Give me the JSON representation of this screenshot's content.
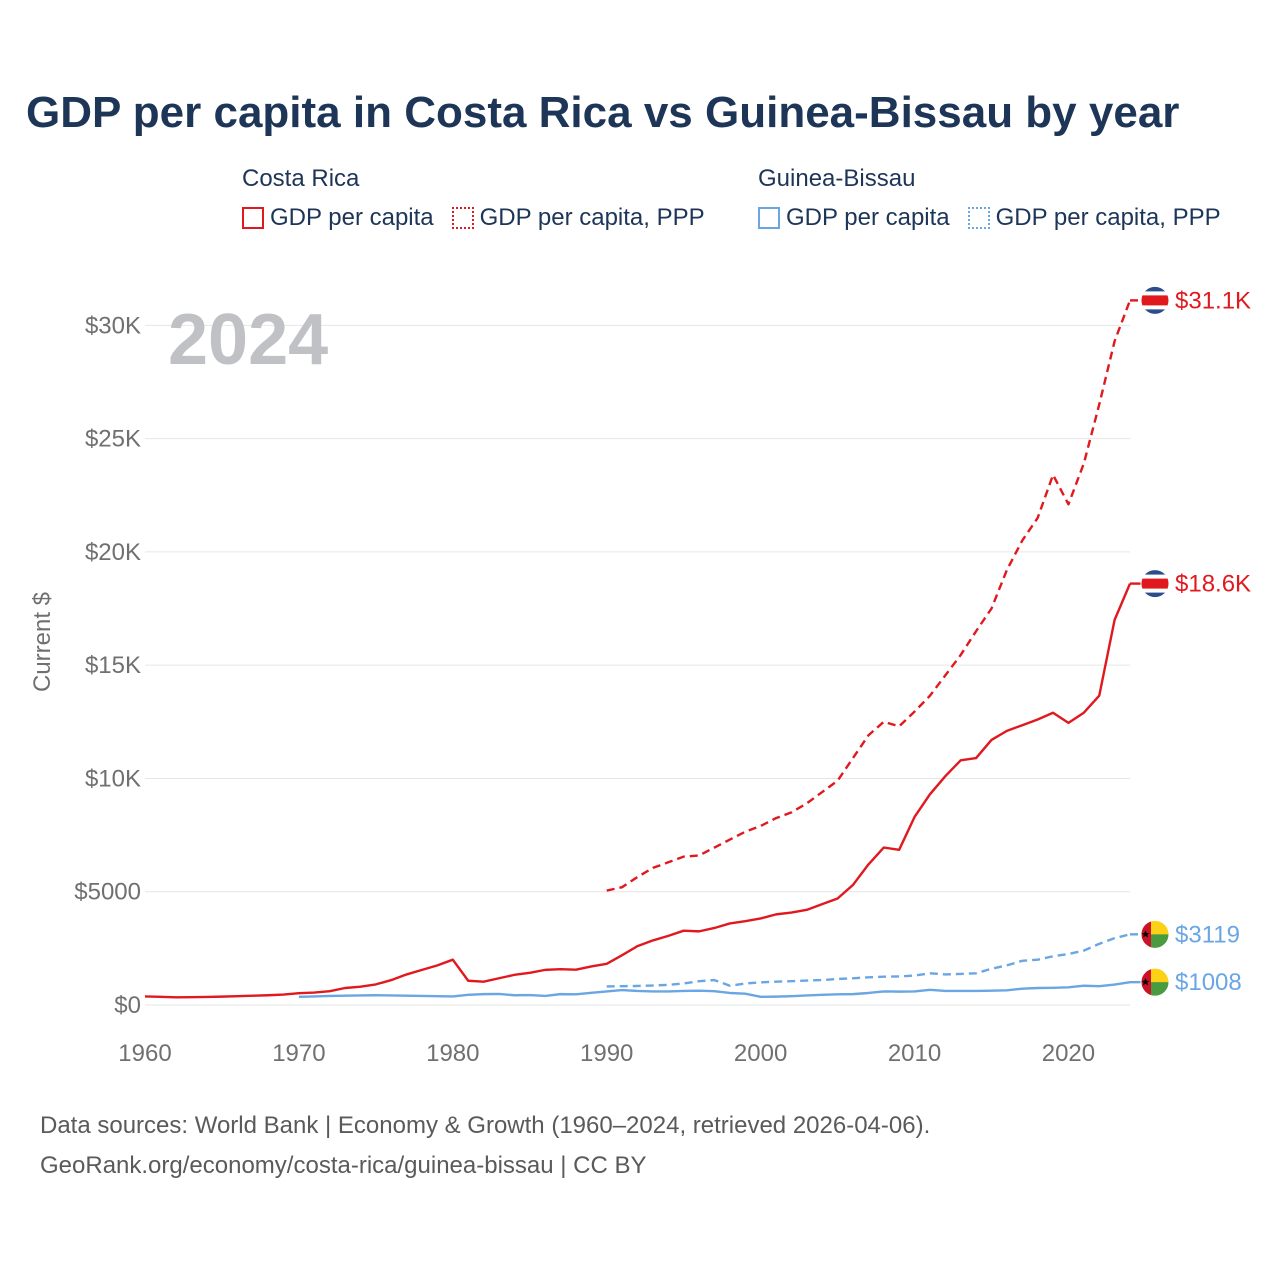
{
  "title": "GDP per capita in Costa Rica vs Guinea-Bissau by year",
  "legend": {
    "groups": [
      {
        "country": "Costa Rica",
        "color": "#e0191f",
        "items": [
          {
            "label": "GDP per capita",
            "style": "solid"
          },
          {
            "label": "GDP per capita, PPP",
            "style": "dotted"
          }
        ]
      },
      {
        "country": "Guinea-Bissau",
        "color": "#6aa6e3",
        "items": [
          {
            "label": "GDP per capita",
            "style": "solid"
          },
          {
            "label": "GDP per capita, PPP",
            "style": "dotted"
          }
        ]
      }
    ]
  },
  "source": {
    "line1": "Data sources: World Bank | Economy & Growth (1960–2024, retrieved 2026-04-06).",
    "line2": "GeoRank.org/economy/costa-rica/guinea-bissau | CC BY"
  },
  "chart_data": {
    "type": "line",
    "title": "GDP per capita in Costa Rica vs Guinea-Bissau by year",
    "year_label": "2024",
    "xlabel": "",
    "ylabel": "Current $",
    "xlim": [
      1960,
      2024
    ],
    "ylim": [
      0,
      32000
    ],
    "xticks": [
      1960,
      1970,
      1980,
      1990,
      2000,
      2010,
      2020
    ],
    "yticks": [
      {
        "value": 0,
        "label": "$0"
      },
      {
        "value": 5000,
        "label": "$5000"
      },
      {
        "value": 10000,
        "label": "$10K"
      },
      {
        "value": 15000,
        "label": "$15K"
      },
      {
        "value": 20000,
        "label": "$20K"
      },
      {
        "value": 25000,
        "label": "$25K"
      },
      {
        "value": 30000,
        "label": "$30K"
      }
    ],
    "grid": true,
    "series": [
      {
        "name": "Costa Rica GDP per capita",
        "country": "Costa Rica",
        "color": "#e0191f",
        "dash": "solid",
        "end_label": "$18.6K",
        "x": [
          1960,
          1961,
          1962,
          1963,
          1964,
          1965,
          1966,
          1967,
          1968,
          1969,
          1970,
          1971,
          1972,
          1973,
          1974,
          1975,
          1976,
          1977,
          1978,
          1979,
          1980,
          1981,
          1982,
          1983,
          1984,
          1985,
          1986,
          1987,
          1988,
          1989,
          1990,
          1991,
          1992,
          1993,
          1994,
          1995,
          1996,
          1997,
          1998,
          1999,
          2000,
          2001,
          2002,
          2003,
          2004,
          2005,
          2006,
          2007,
          2008,
          2009,
          2010,
          2011,
          2012,
          2013,
          2014,
          2015,
          2016,
          2017,
          2018,
          2019,
          2020,
          2021,
          2022,
          2023,
          2024
        ],
        "values": [
          380,
          360,
          340,
          345,
          355,
          370,
          390,
          410,
          430,
          460,
          520,
          550,
          610,
          750,
          810,
          910,
          1100,
          1350,
          1550,
          1750,
          2000,
          1070,
          1030,
          1180,
          1330,
          1420,
          1550,
          1580,
          1560,
          1700,
          1820,
          2200,
          2600,
          2850,
          3050,
          3280,
          3250,
          3400,
          3600,
          3700,
          3820,
          4000,
          4080,
          4200,
          4450,
          4700,
          5300,
          6200,
          6950,
          6850,
          8300,
          9300,
          10100,
          10800,
          10900,
          11700,
          12100,
          12350,
          12600,
          12900,
          12450,
          12900,
          13650,
          17000,
          18600
        ]
      },
      {
        "name": "Costa Rica GDP per capita, PPP",
        "country": "Costa Rica",
        "color": "#e0191f",
        "dash": "dashed",
        "end_label": "$31.1K",
        "x": [
          1990,
          1991,
          1992,
          1993,
          1994,
          1995,
          1996,
          1997,
          1998,
          1999,
          2000,
          2001,
          2002,
          2003,
          2004,
          2005,
          2006,
          2007,
          2008,
          2009,
          2010,
          2011,
          2012,
          2013,
          2014,
          2015,
          2016,
          2017,
          2018,
          2019,
          2020,
          2021,
          2022,
          2023,
          2024
        ],
        "values": [
          5050,
          5200,
          5650,
          6050,
          6300,
          6550,
          6600,
          6950,
          7300,
          7650,
          7900,
          8250,
          8500,
          8900,
          9400,
          9900,
          10900,
          11900,
          12500,
          12300,
          12950,
          13650,
          14550,
          15450,
          16500,
          17500,
          19200,
          20500,
          21500,
          23400,
          22100,
          23900,
          26500,
          29300,
          31100
        ]
      },
      {
        "name": "Guinea-Bissau GDP per capita",
        "country": "Guinea-Bissau",
        "color": "#6aa6e3",
        "dash": "solid",
        "end_label": "$1008",
        "x": [
          1970,
          1971,
          1972,
          1973,
          1974,
          1975,
          1976,
          1977,
          1978,
          1979,
          1980,
          1981,
          1982,
          1983,
          1984,
          1985,
          1986,
          1987,
          1988,
          1989,
          1990,
          1991,
          1992,
          1993,
          1994,
          1995,
          1996,
          1997,
          1998,
          1999,
          2000,
          2001,
          2002,
          2003,
          2004,
          2005,
          2006,
          2007,
          2008,
          2009,
          2010,
          2011,
          2012,
          2013,
          2014,
          2015,
          2016,
          2017,
          2018,
          2019,
          2020,
          2021,
          2022,
          2023,
          2024
        ],
        "values": [
          360,
          380,
          400,
          410,
          420,
          430,
          420,
          410,
          400,
          390,
          380,
          450,
          480,
          490,
          430,
          440,
          400,
          480,
          470,
          540,
          600,
          660,
          620,
          600,
          600,
          620,
          630,
          610,
          530,
          500,
          360,
          370,
          390,
          420,
          450,
          470,
          480,
          530,
          600,
          590,
          600,
          670,
          620,
          620,
          620,
          630,
          650,
          720,
          750,
          760,
          780,
          850,
          830,
          900,
          1008
        ]
      },
      {
        "name": "Guinea-Bissau GDP per capita, PPP",
        "country": "Guinea-Bissau",
        "color": "#6aa6e3",
        "dash": "dashed",
        "end_label": "$3119",
        "x": [
          1990,
          1991,
          1992,
          1993,
          1994,
          1995,
          1996,
          1997,
          1998,
          1999,
          2000,
          2001,
          2002,
          2003,
          2004,
          2005,
          2006,
          2007,
          2008,
          2009,
          2010,
          2011,
          2012,
          2013,
          2014,
          2015,
          2016,
          2017,
          2018,
          2019,
          2020,
          2021,
          2022,
          2023,
          2024
        ],
        "values": [
          820,
          830,
          840,
          860,
          890,
          950,
          1050,
          1100,
          850,
          950,
          1000,
          1030,
          1050,
          1080,
          1100,
          1150,
          1180,
          1220,
          1250,
          1260,
          1300,
          1400,
          1350,
          1370,
          1400,
          1600,
          1750,
          1950,
          2000,
          2150,
          2250,
          2400,
          2700,
          2950,
          3119
        ]
      }
    ]
  }
}
